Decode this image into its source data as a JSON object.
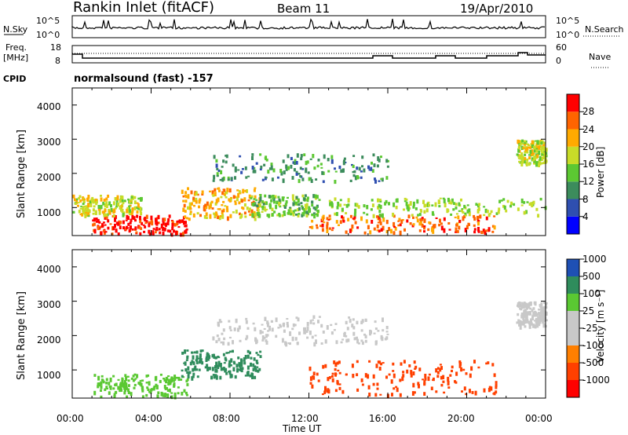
{
  "header": {
    "station": "Rankin Inlet (fitACF)",
    "beam": "Beam 11",
    "date": "19/Apr/2010"
  },
  "noise_panel": {
    "left_label": "N.Sky",
    "right_label": "N.Search",
    "top_tick": "10^5",
    "bottom_tick": "10^0"
  },
  "freq_panel": {
    "left_label_line1": "Freq.",
    "left_label_line2": "[MHz]",
    "left_ticks": [
      "18",
      "8"
    ],
    "right_ticks": [
      "60",
      "0"
    ],
    "right_label": "Nave"
  },
  "cpid": {
    "label": "CPID",
    "value": "normalsound (fast) -157"
  },
  "colors": {
    "power_scale": [
      "#0000ff",
      "#2f4fb0",
      "#3c8c5c",
      "#5cc832",
      "#c8dc28",
      "#ffaa00",
      "#ff6400",
      "#ff0000"
    ],
    "velocity_scale": [
      "#ff0000",
      "#ff4000",
      "#ff7f00",
      "#c8c8c8",
      "#c8c8c8",
      "#5ac832",
      "#2f8c5c",
      "#1e50b4"
    ]
  },
  "chart_data": [
    {
      "type": "heatmap",
      "title": "Power",
      "ylabel": "Slant Range [km]",
      "xlabel": "Time UT",
      "x_ticks": [
        "00:00",
        "04:00",
        "08:00",
        "12:00",
        "16:00",
        "20:00",
        "00:00"
      ],
      "y_ticks": [
        1000,
        2000,
        3000,
        4000
      ],
      "ylim": [
        180,
        4500
      ],
      "xlim": [
        0,
        24
      ],
      "colorbar_label": "Power [dB]",
      "colorbar_ticks": [
        4,
        8,
        12,
        16,
        20,
        24,
        28
      ],
      "echo_regions": [
        {
          "t": [
            1.0,
            5.8
          ],
          "r": [
            250,
            800
          ],
          "value": 30
        },
        {
          "t": [
            0.0,
            3.5
          ],
          "r": [
            800,
            1400
          ],
          "value": 18
        },
        {
          "t": [
            5.5,
            9.5
          ],
          "r": [
            700,
            1600
          ],
          "value": 22
        },
        {
          "t": [
            9.0,
            12.5
          ],
          "r": [
            800,
            1400
          ],
          "value": 14
        },
        {
          "t": [
            12.0,
            21.5
          ],
          "r": [
            300,
            800
          ],
          "value": 26
        },
        {
          "t": [
            13.0,
            24.0
          ],
          "r": [
            800,
            1300
          ],
          "value": 16
        },
        {
          "t": [
            7.0,
            16.0
          ],
          "r": [
            1800,
            2600
          ],
          "value": 10
        },
        {
          "t": [
            22.5,
            24.0
          ],
          "r": [
            2300,
            3000
          ],
          "value": 18
        }
      ]
    },
    {
      "type": "heatmap",
      "title": "Velocity",
      "ylabel": "Slant Range [km]",
      "xlabel": "Time UT",
      "x_ticks": [
        "00:00",
        "04:00",
        "08:00",
        "12:00",
        "16:00",
        "20:00",
        "00:00"
      ],
      "y_ticks": [
        1000,
        2000,
        3000,
        4000
      ],
      "ylim": [
        180,
        4500
      ],
      "xlim": [
        0,
        24
      ],
      "colorbar_label": "Velocity [m s⁻¹]",
      "colorbar_ticks": [
        -1000,
        -500,
        -100,
        -25,
        25,
        100,
        500,
        1000
      ],
      "colorbar_tick_labels": [
        "-1000",
        "-500",
        "-100",
        "-25",
        "25",
        "100",
        "500",
        "1000"
      ],
      "echo_regions": [
        {
          "t": [
            1.0,
            5.8
          ],
          "r": [
            250,
            900
          ],
          "value": 150
        },
        {
          "t": [
            5.5,
            9.5
          ],
          "r": [
            800,
            1600
          ],
          "value": 600
        },
        {
          "t": [
            12.0,
            21.5
          ],
          "r": [
            300,
            1300
          ],
          "value": -300
        },
        {
          "t": [
            7.0,
            16.0
          ],
          "r": [
            1800,
            2600
          ],
          "value": 0
        },
        {
          "t": [
            22.5,
            24.0
          ],
          "r": [
            2300,
            3000
          ],
          "value": 0
        }
      ]
    }
  ]
}
